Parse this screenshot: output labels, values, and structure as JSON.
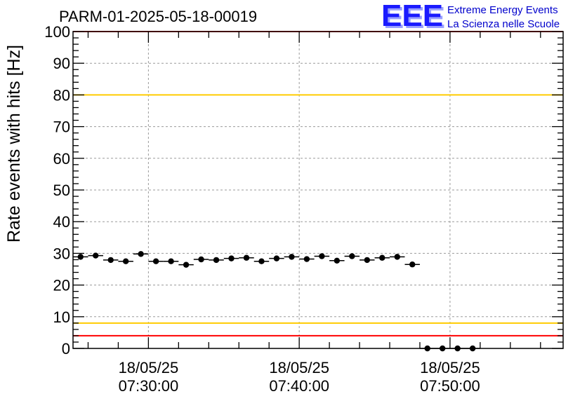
{
  "chart_data": {
    "type": "scatter",
    "title": "PARM-01-2025-05-18-00019",
    "ylabel": "Rate events with hits [Hz]",
    "xlabel": "",
    "ylim": [
      0,
      100
    ],
    "yticks": [
      0,
      10,
      20,
      30,
      40,
      50,
      60,
      70,
      80,
      90,
      100
    ],
    "x_unit": "minutes after 07:25",
    "xlim": [
      0,
      32.5
    ],
    "xticks": [
      {
        "value": 5,
        "date": "18/05/25",
        "time": "07:30:00"
      },
      {
        "value": 15,
        "date": "18/05/25",
        "time": "07:40:00"
      },
      {
        "value": 25,
        "date": "18/05/25",
        "time": "07:50:00"
      }
    ],
    "bin_width": 1,
    "series": [
      {
        "name": "rate",
        "x": [
          0.5,
          1.5,
          2.5,
          3.5,
          4.5,
          5.5,
          6.5,
          7.5,
          8.5,
          9.5,
          10.5,
          11.5,
          12.5,
          13.5,
          14.5,
          15.5,
          16.5,
          17.5,
          18.5,
          19.5,
          20.5,
          21.5,
          22.5,
          23.5,
          24.5,
          25.5,
          26.5
        ],
        "values": [
          28.9,
          29.3,
          27.9,
          27.5,
          29.8,
          27.5,
          27.5,
          26.4,
          28.1,
          27.9,
          28.4,
          28.6,
          27.5,
          28.4,
          28.9,
          28.2,
          29.1,
          27.7,
          29.1,
          27.9,
          28.6,
          28.9,
          26.5,
          0,
          0,
          0,
          0
        ]
      }
    ],
    "reference_lines": [
      {
        "name": "upper-red-line",
        "value": 100,
        "color": "#ff0000"
      },
      {
        "name": "upper-yellow-line",
        "value": 80,
        "color": "#ffcc00"
      },
      {
        "name": "lower-yellow-line",
        "value": 8,
        "color": "#ffcc00"
      },
      {
        "name": "lower-red-line",
        "value": 4,
        "color": "#ff0000"
      }
    ],
    "grid": true
  },
  "logo": {
    "big": "EEE",
    "line1": "Extreme Energy Events",
    "line2": "La Scienza nelle Scuole"
  }
}
